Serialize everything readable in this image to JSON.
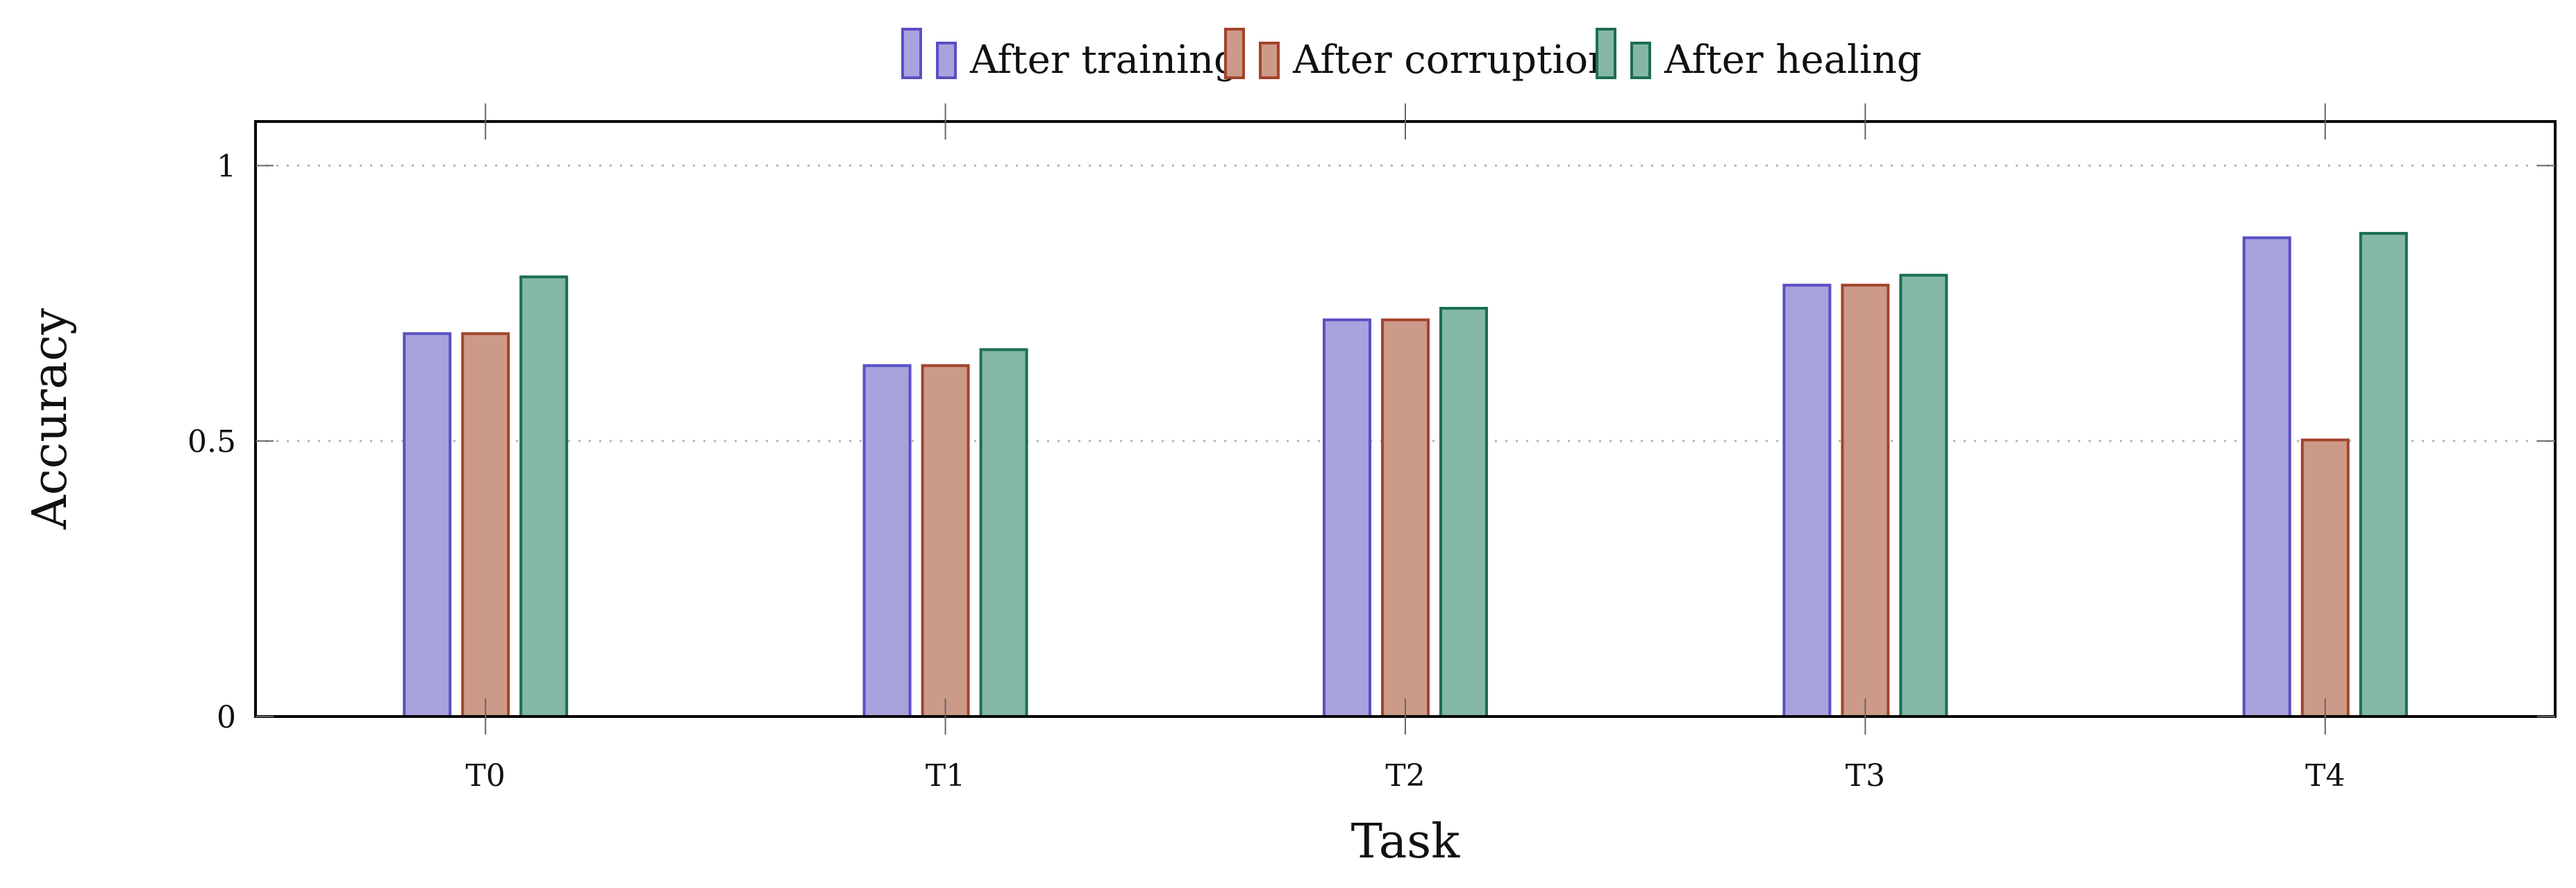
{
  "chart_data": {
    "type": "bar",
    "xlabel": "Task",
    "ylabel": "Accuracy",
    "categories": [
      "T0",
      "T1",
      "T2",
      "T3",
      "T4"
    ],
    "ylim": [
      0,
      1.08
    ],
    "yticks": [
      0,
      0.5,
      1
    ],
    "ytick_labels": [
      "0",
      "0.5",
      "1"
    ],
    "grid": "horizontal dotted at y-ticks",
    "legend_placement": "top-center, above plot",
    "series": [
      {
        "name": "After training",
        "values": [
          0.695,
          0.637,
          0.72,
          0.783,
          0.869
        ],
        "fill": "#a8a3dc",
        "stroke": "#5a4fc4"
      },
      {
        "name": "After corruption",
        "values": [
          0.695,
          0.637,
          0.72,
          0.783,
          0.502
        ],
        "fill": "#cc9a88",
        "stroke": "#a3432c"
      },
      {
        "name": "After healing",
        "values": [
          0.798,
          0.666,
          0.741,
          0.801,
          0.877
        ],
        "fill": "#84b7a8",
        "stroke": "#1c6e52"
      }
    ]
  }
}
